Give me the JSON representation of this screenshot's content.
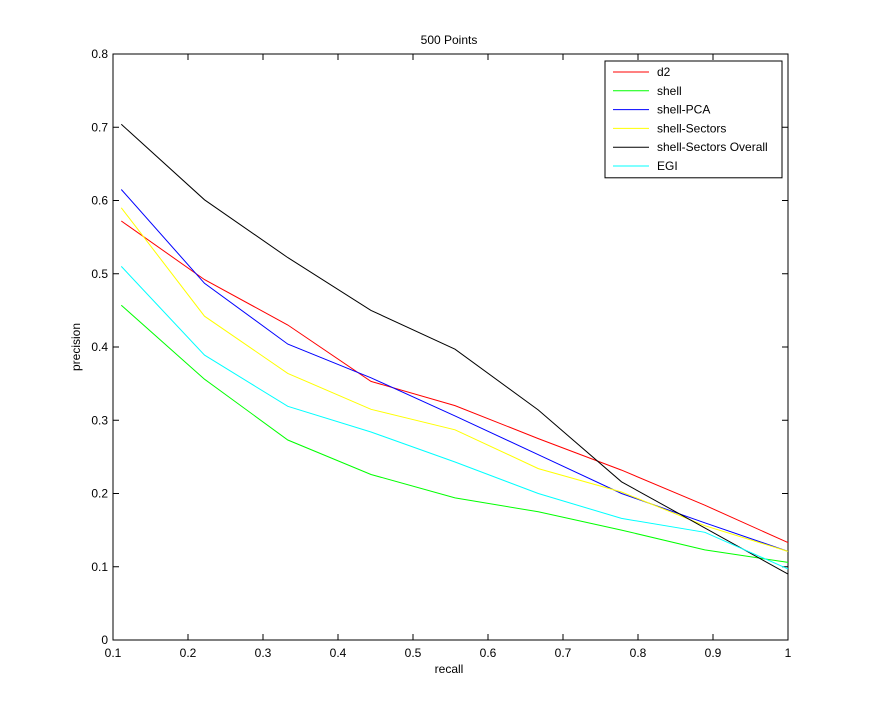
{
  "chart_data": {
    "type": "line",
    "title": "500 Points",
    "xlabel": "recall",
    "ylabel": "precision",
    "xlim": [
      0.1,
      1
    ],
    "ylim": [
      0,
      0.8
    ],
    "x_ticks": [
      "0.1",
      "0.2",
      "0.3",
      "0.4",
      "0.5",
      "0.6",
      "0.7",
      "0.8",
      "0.9",
      "1"
    ],
    "y_ticks": [
      "0",
      "0.1",
      "0.2",
      "0.3",
      "0.4",
      "0.5",
      "0.6",
      "0.7",
      "0.8"
    ],
    "grid": false,
    "legend_position": "top-right",
    "x": [
      0.111,
      0.222,
      0.333,
      0.444,
      0.556,
      0.667,
      0.778,
      0.889,
      1.0
    ],
    "series": [
      {
        "name": "d2",
        "color": "#ff0000",
        "values": [
          0.572,
          0.492,
          0.43,
          0.353,
          0.32,
          0.275,
          0.232,
          0.184,
          0.133
        ]
      },
      {
        "name": "shell",
        "color": "#00ff00",
        "values": [
          0.457,
          0.356,
          0.273,
          0.226,
          0.194,
          0.175,
          0.15,
          0.123,
          0.106
        ]
      },
      {
        "name": "shell-PCA",
        "color": "#0000ff",
        "values": [
          0.615,
          0.487,
          0.404,
          0.358,
          0.306,
          0.253,
          0.2,
          0.16,
          0.121
        ]
      },
      {
        "name": "shell-Sectors",
        "color": "#ffff00",
        "values": [
          0.59,
          0.442,
          0.364,
          0.315,
          0.287,
          0.234,
          0.202,
          0.156,
          0.121
        ]
      },
      {
        "name": "shell-Sectors Overall",
        "color": "#000000",
        "values": [
          0.704,
          0.601,
          0.522,
          0.45,
          0.397,
          0.314,
          0.216,
          0.153,
          0.09
        ]
      },
      {
        "name": "EGI",
        "color": "#00ffff",
        "values": [
          0.51,
          0.389,
          0.319,
          0.284,
          0.243,
          0.2,
          0.166,
          0.147,
          0.097
        ]
      }
    ]
  }
}
